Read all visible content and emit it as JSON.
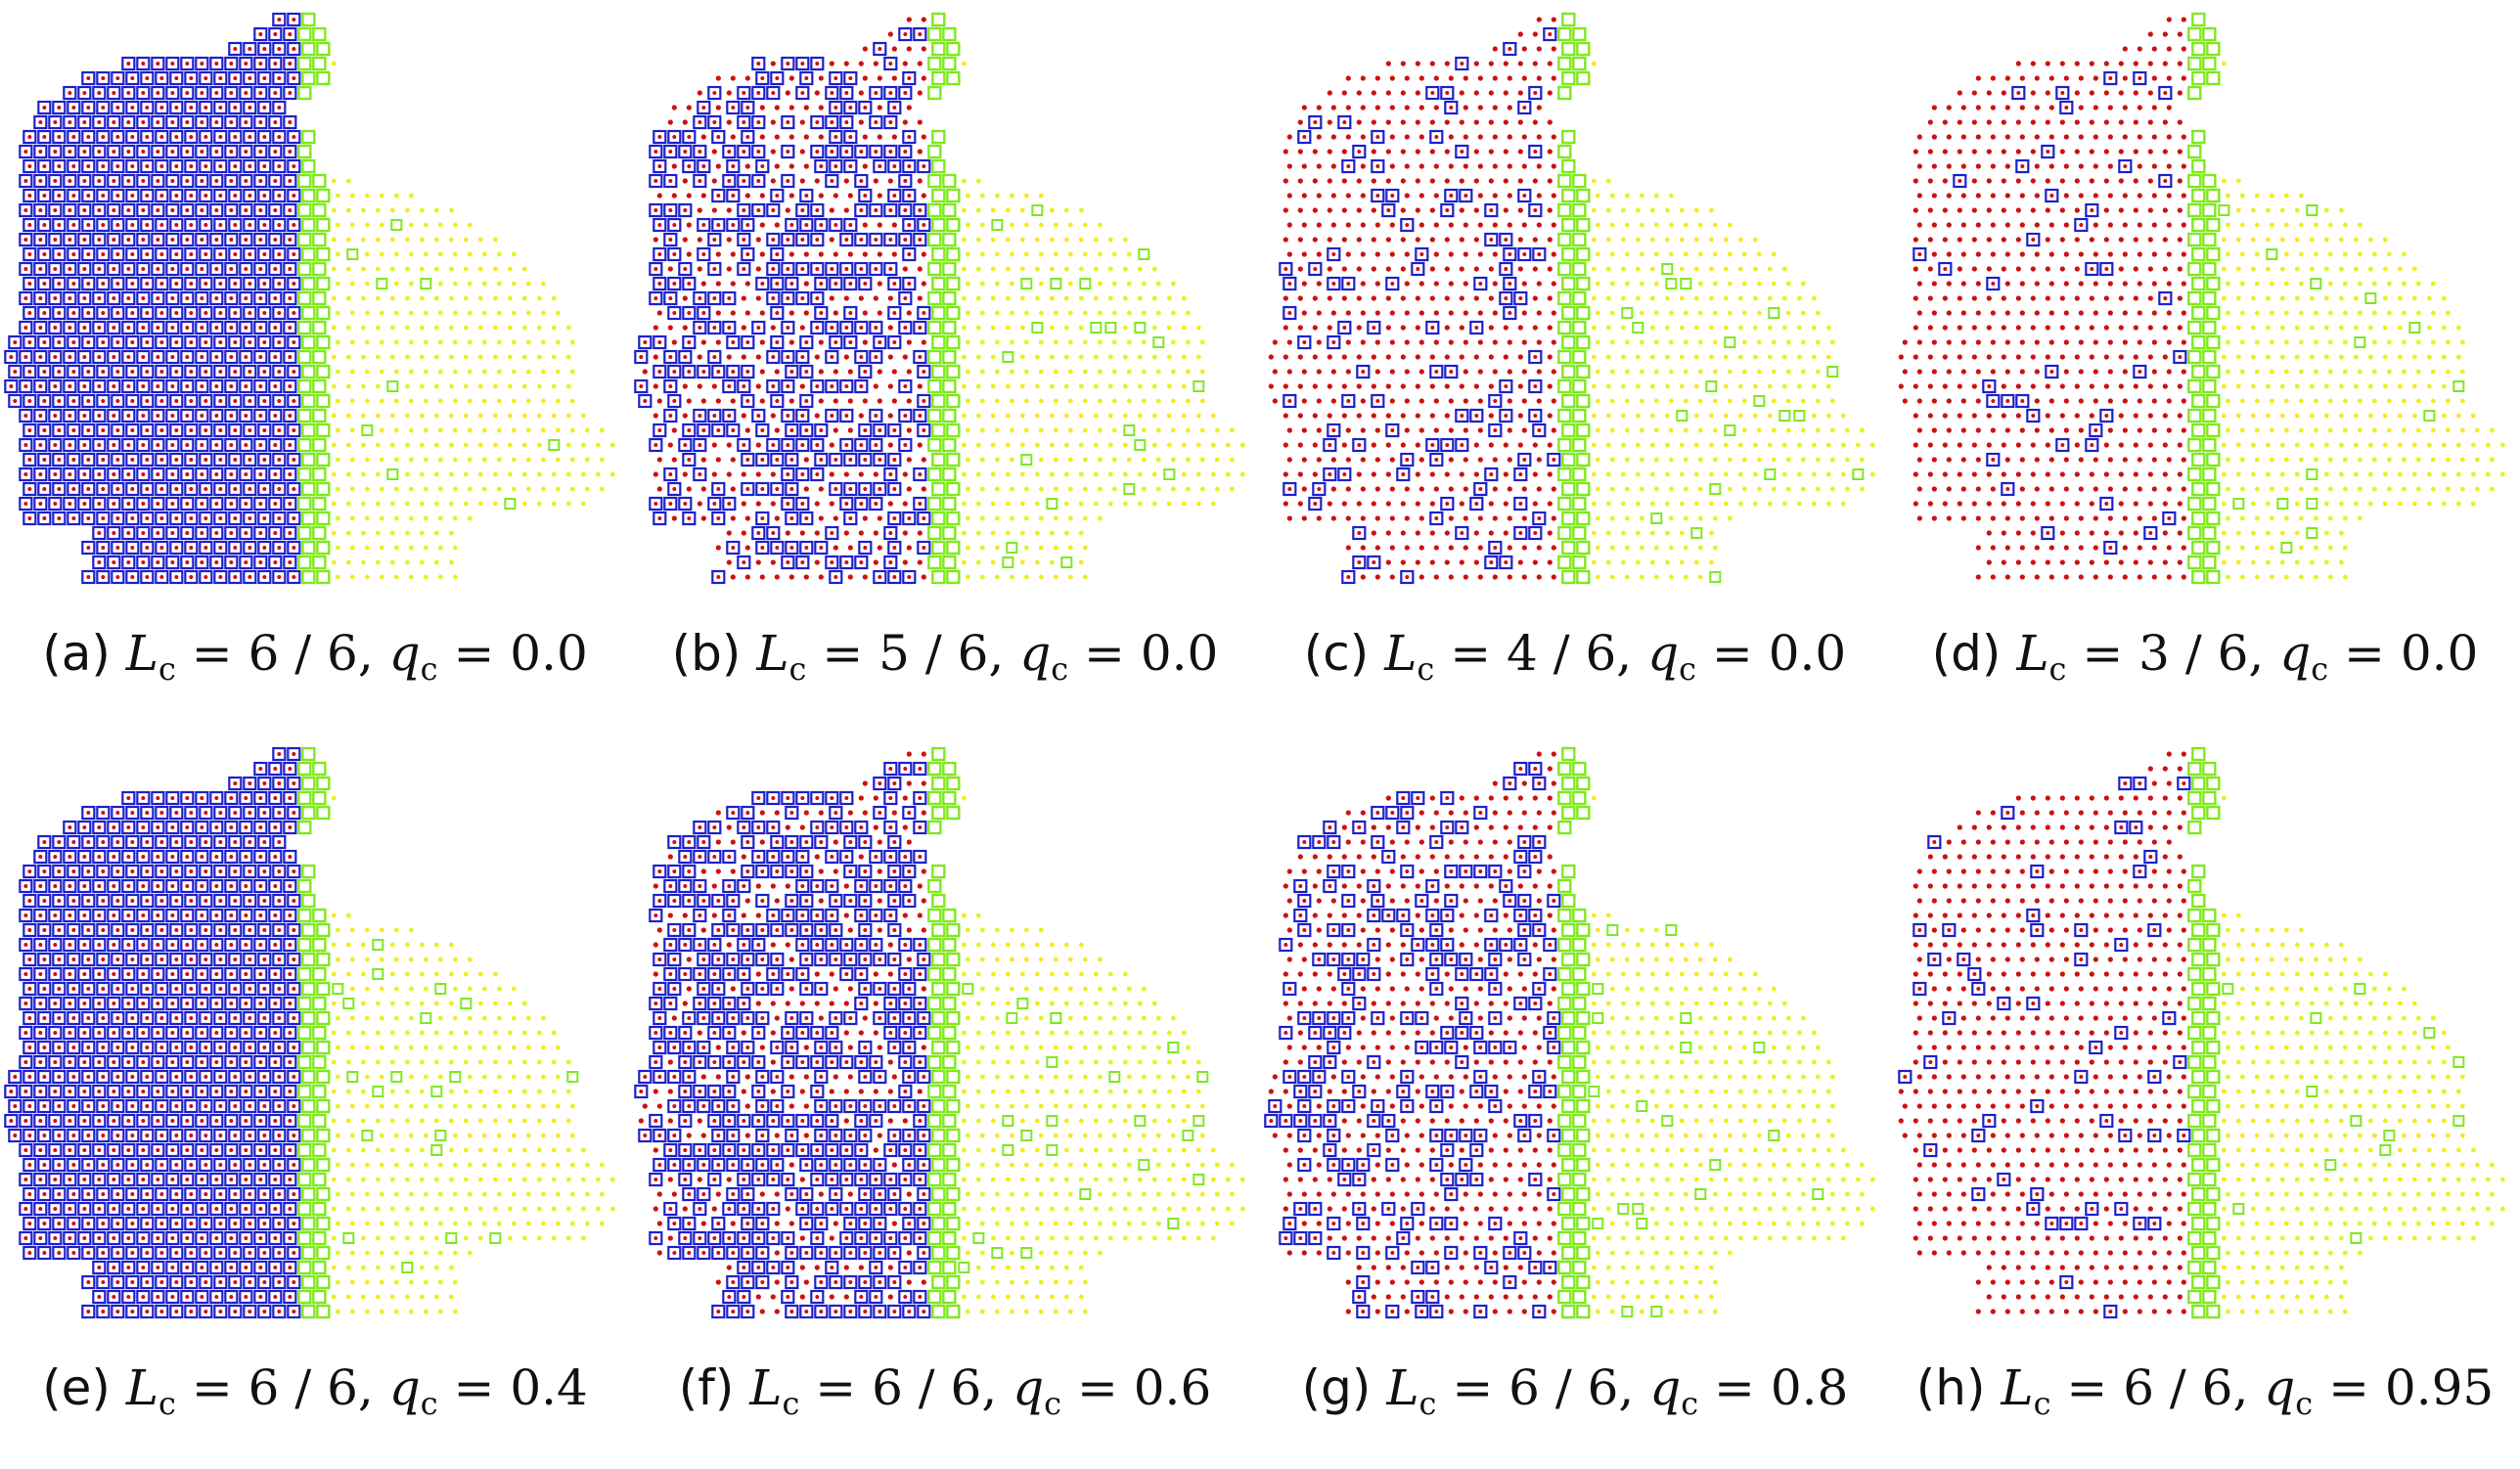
{
  "figure": {
    "colors": {
      "active": "#1f1fcc",
      "active_inner": "#cc1111",
      "inactive": "#cc1111",
      "boundary": "#7fe81e",
      "far": "#eeee22"
    },
    "panels": [
      {
        "letter": "(a)",
        "L_num": "6",
        "L_den": "6",
        "q": "0.0",
        "active_ratio": 1.0
      },
      {
        "letter": "(b)",
        "L_num": "5",
        "L_den": "6",
        "q": "0.0",
        "active_ratio": 0.55
      },
      {
        "letter": "(c)",
        "L_num": "4",
        "L_den": "6",
        "q": "0.0",
        "active_ratio": 0.16
      },
      {
        "letter": "(d)",
        "L_num": "3",
        "L_den": "6",
        "q": "0.0",
        "active_ratio": 0.06
      },
      {
        "letter": "(e)",
        "L_num": "6",
        "L_den": "6",
        "q": "0.4",
        "active_ratio": 1.0
      },
      {
        "letter": "(f)",
        "L_num": "6",
        "L_den": "6",
        "q": "0.6",
        "active_ratio": 0.7
      },
      {
        "letter": "(g)",
        "L_num": "6",
        "L_den": "6",
        "q": "0.8",
        "active_ratio": 0.35
      },
      {
        "letter": "(h)",
        "L_num": "6",
        "L_den": "6",
        "q": "0.95",
        "active_ratio": 0.08
      }
    ],
    "symbols": {
      "L": "L",
      "L_sub": "c",
      "q": "q",
      "q_sub": "c",
      "eq": " = ",
      "slash": " / ",
      "comma": ",  "
    }
  }
}
